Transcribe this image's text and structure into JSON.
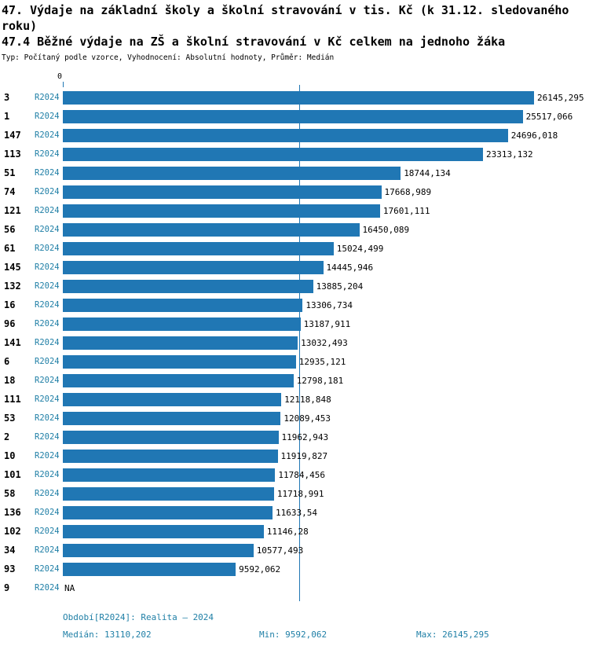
{
  "header": {
    "title_line1": "47. Výdaje na základní školy a školní stravování v tis. Kč (k 31.12. sledovaného roku)",
    "title_line2": "47.4 Běžné výdaje na ZŠ a školní stravování v Kč celkem na jednoho žáka",
    "meta": "Typ: Počítaný podle vzorce, Vyhodnocení: Absolutní hodnoty, Průměr: Medián"
  },
  "chart_data": {
    "type": "bar",
    "orientation": "horizontal",
    "series_label": "R2024",
    "axis_zero_label": "0",
    "axis_max": 26145.295,
    "median": 13110.202,
    "categories": [
      "3",
      "1",
      "147",
      "113",
      "51",
      "74",
      "121",
      "56",
      "61",
      "145",
      "132",
      "16",
      "96",
      "141",
      "6",
      "18",
      "111",
      "53",
      "2",
      "10",
      "101",
      "58",
      "136",
      "102",
      "34",
      "93",
      "9"
    ],
    "values": [
      26145.295,
      25517.066,
      24696.018,
      23313.132,
      18744.134,
      17668.989,
      17601.111,
      16450.089,
      15024.499,
      14445.946,
      13885.204,
      13306.734,
      13187.911,
      13032.493,
      12935.121,
      12798.181,
      12118.848,
      12089.453,
      11962.943,
      11919.827,
      11784.456,
      11718.991,
      11633.54,
      11146.28,
      10577.493,
      9592.062,
      null
    ],
    "value_labels": [
      "26145,295",
      "25517,066",
      "24696,018",
      "23313,132",
      "18744,134",
      "17668,989",
      "17601,111",
      "16450,089",
      "15024,499",
      "14445,946",
      "13885,204",
      "13306,734",
      "13187,911",
      "13032,493",
      "12935,121",
      "12798,181",
      "12118,848",
      "12089,453",
      "11962,943",
      "11919,827",
      "11784,456",
      "11718,991",
      "11633,54",
      "11146,28",
      "10577,493",
      "9592,062",
      "NA"
    ],
    "legend_position": "none",
    "grid": false
  },
  "footer": {
    "period": "Období[R2024]: Realita – 2024",
    "median": "Medián: 13110,202",
    "min": "Min: 9592,062",
    "max": "Max: 26145,295"
  },
  "colors": {
    "bar": "#2077b4",
    "median": "#2077b4",
    "accent": "#1f7fa6",
    "text": "#000000"
  }
}
